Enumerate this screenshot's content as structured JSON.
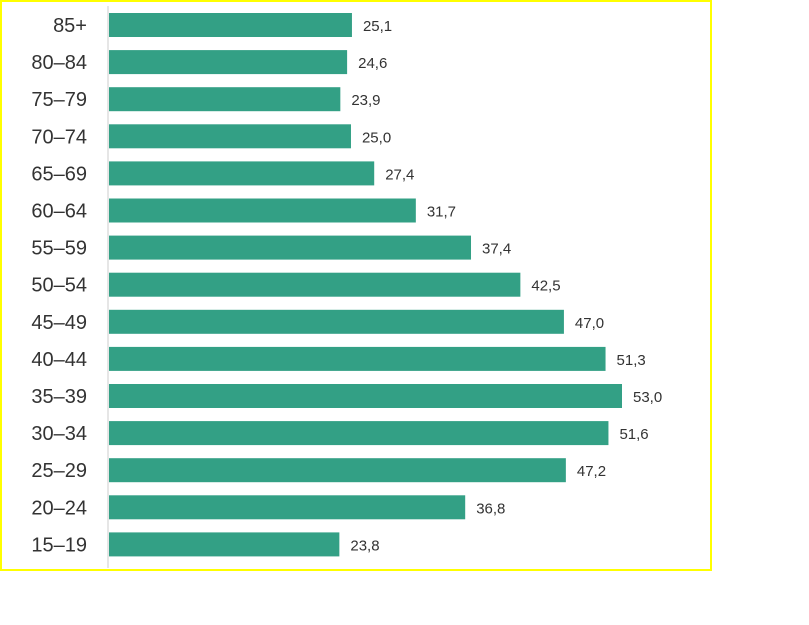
{
  "chart_data": {
    "type": "bar",
    "orientation": "horizontal",
    "categories": [
      "85+",
      "80–84",
      "75–79",
      "70–74",
      "65–69",
      "60–64",
      "55–59",
      "50–54",
      "45–49",
      "40–44",
      "35–39",
      "30–34",
      "25–29",
      "20–24",
      "15–19"
    ],
    "values": [
      25.1,
      24.6,
      23.9,
      25.0,
      27.4,
      31.7,
      37.4,
      42.5,
      47.0,
      51.3,
      53.0,
      51.6,
      47.2,
      36.8,
      23.8
    ],
    "value_labels": [
      "25,1",
      "24,6",
      "23,9",
      "25,0",
      "27,4",
      "31,7",
      "37,4",
      "42,5",
      "47,0",
      "51,3",
      "53,0",
      "51,6",
      "47,2",
      "36,8",
      "23,8"
    ],
    "title": "",
    "xlabel": "",
    "ylabel": "",
    "xlim": [
      0,
      53.0
    ],
    "grid": false,
    "legend": "none",
    "colors": {
      "bar": "#33a085",
      "frame": "#ffff00",
      "axis": "#cccccc",
      "text": "#333333"
    }
  }
}
